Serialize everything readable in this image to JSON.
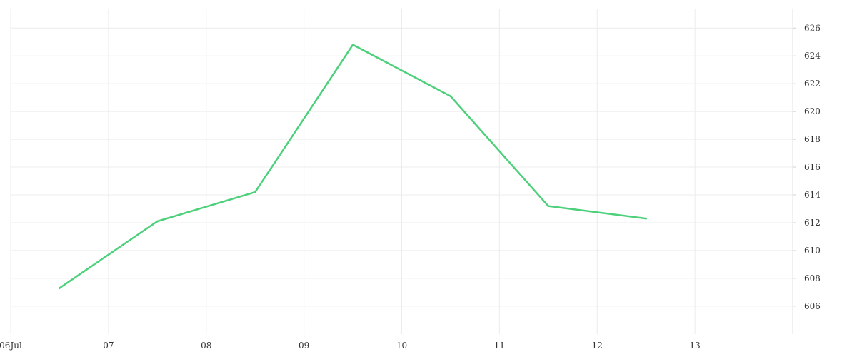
{
  "chart_data": {
    "type": "line",
    "title": "",
    "xlabel": "",
    "ylabel": "",
    "x_ticks": [
      "06Jul",
      "07",
      "08",
      "09",
      "10",
      "11",
      "12",
      "13"
    ],
    "y_ticks": [
      606,
      608,
      610,
      612,
      614,
      616,
      618,
      620,
      622,
      624,
      626
    ],
    "xlim": [
      "2024-07-06",
      "2024-07-14"
    ],
    "ylim": [
      604.4,
      627.4
    ],
    "grid": true,
    "legend": "none",
    "y_axis_side": "right",
    "series": [
      {
        "color": "#4cd07a",
        "points": [
          {
            "x": "2024-07-06 12:00",
            "y": 607.3
          },
          {
            "x": "2024-07-07 12:00",
            "y": 612.1
          },
          {
            "x": "2024-07-08 12:00",
            "y": 614.2
          },
          {
            "x": "2024-07-09 12:00",
            "y": 624.8
          },
          {
            "x": "2024-07-10 12:00",
            "y": 621.1
          },
          {
            "x": "2024-07-11 12:00",
            "y": 613.2
          },
          {
            "x": "2024-07-12 12:00",
            "y": 612.3
          }
        ]
      }
    ]
  }
}
